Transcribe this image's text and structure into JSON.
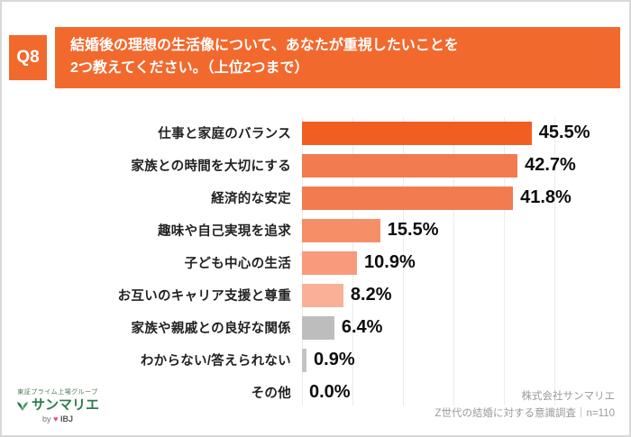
{
  "colors": {
    "accent_orange": "#F2692E",
    "grid_line": "#ececec",
    "value_text": "#0d0d0d",
    "source_text": "#9b9b9b",
    "logo_green": "#2f7d4e",
    "heart_pink": "#e8467c"
  },
  "header": {
    "q_label": "Q8",
    "title_line1": "結婚後の理想の生活像について、あなたが重視したいことを",
    "title_line2": "2つ教えてください。（上位2つまで）"
  },
  "chart_data": {
    "type": "bar",
    "orientation": "horizontal",
    "title": "結婚後の理想の生活像について、あなたが重視したいことを2つ教えてください。（上位2つまで）",
    "categories": [
      "仕事と家庭のバランス",
      "家族との時間を大切にする",
      "経済的な安定",
      "趣味や自己実現を追求",
      "子ども中心の生活",
      "お互いのキャリア支援と尊重",
      "家族や親戚との良好な関係",
      "わからない/答えられない",
      "その他"
    ],
    "values": [
      45.5,
      42.7,
      41.8,
      15.5,
      10.9,
      8.2,
      6.4,
      0.9,
      0.0
    ],
    "value_labels": [
      "45.5%",
      "42.7%",
      "41.8%",
      "15.5%",
      "10.9%",
      "8.2%",
      "6.4%",
      "0.9%",
      "0.0%"
    ],
    "bar_colors": [
      "#F15E22",
      "#F37B50",
      "#F37B50",
      "#F68E68",
      "#F79B7C",
      "#F9B096",
      "#BDBDBD",
      "#C4C4C4",
      "#CCCCCC"
    ],
    "xlabel": "",
    "ylabel": "",
    "xlim": [
      0,
      50
    ],
    "grid": true,
    "legend": "none"
  },
  "footer": {
    "logo_group_text": "東証プライム上場グループ",
    "logo_name": "サンマリエ",
    "logo_by_prefix": "by",
    "logo_by_heart": "♥",
    "logo_by_name": "IBJ",
    "source_line1": "株式会社サンマリエ",
    "source_line2": "Z世代の結婚に対する意識調査｜n=110"
  }
}
